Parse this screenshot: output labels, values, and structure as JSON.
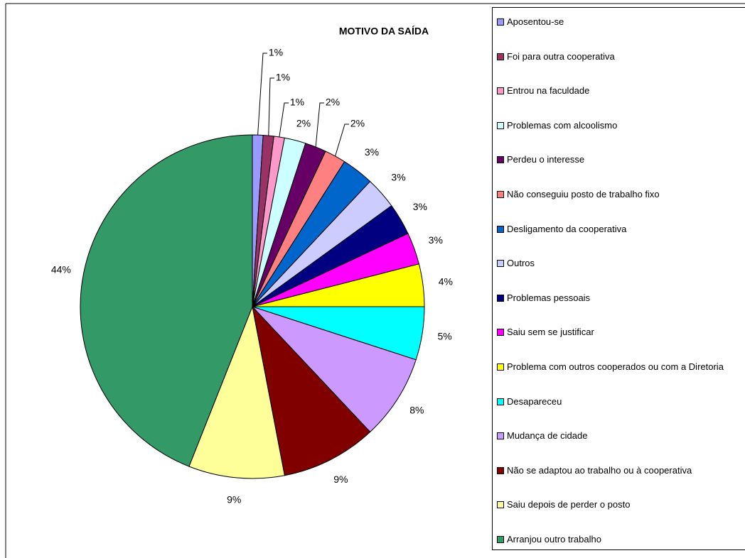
{
  "chart_data": {
    "type": "pie",
    "title": "MOTIVO DA SAÍDA",
    "categories": [
      "Aposentou-se",
      "Foi para outra cooperativa",
      "Entrou na faculdade",
      "Problemas com alcoolismo",
      "Perdeu o interesse",
      "Não conseguiu posto de trabalho fixo",
      "Desligamento da cooperativa",
      "Outros",
      "Problemas pessoais",
      "Saiu sem se justificar",
      "Problema com outros cooperados ou com a Diretoria",
      "Desapareceu",
      "Mudança de cidade",
      "Não se adaptou ao trabalho ou à cooperativa",
      "Saiu depois de perder o posto",
      "Arranjou outro trabalho"
    ],
    "values": [
      1,
      1,
      1,
      2,
      2,
      2,
      3,
      3,
      3,
      3,
      4,
      5,
      8,
      9,
      9,
      44
    ],
    "value_labels": [
      "1%",
      "1%",
      "1%",
      "2%",
      "2%",
      "2%",
      "3%",
      "3%",
      "3%",
      "3%",
      "4%",
      "5%",
      "8%",
      "9%",
      "9%",
      "44%"
    ],
    "colors": [
      "#9999FF",
      "#993366",
      "#FF99CC",
      "#CCFFFF",
      "#660066",
      "#FF8080",
      "#0066CC",
      "#CCCCFF",
      "#000080",
      "#FF00FF",
      "#FFFF00",
      "#00FFFF",
      "#CC99FF",
      "#800000",
      "#FFFF99",
      "#339966"
    ],
    "legend": "right"
  }
}
